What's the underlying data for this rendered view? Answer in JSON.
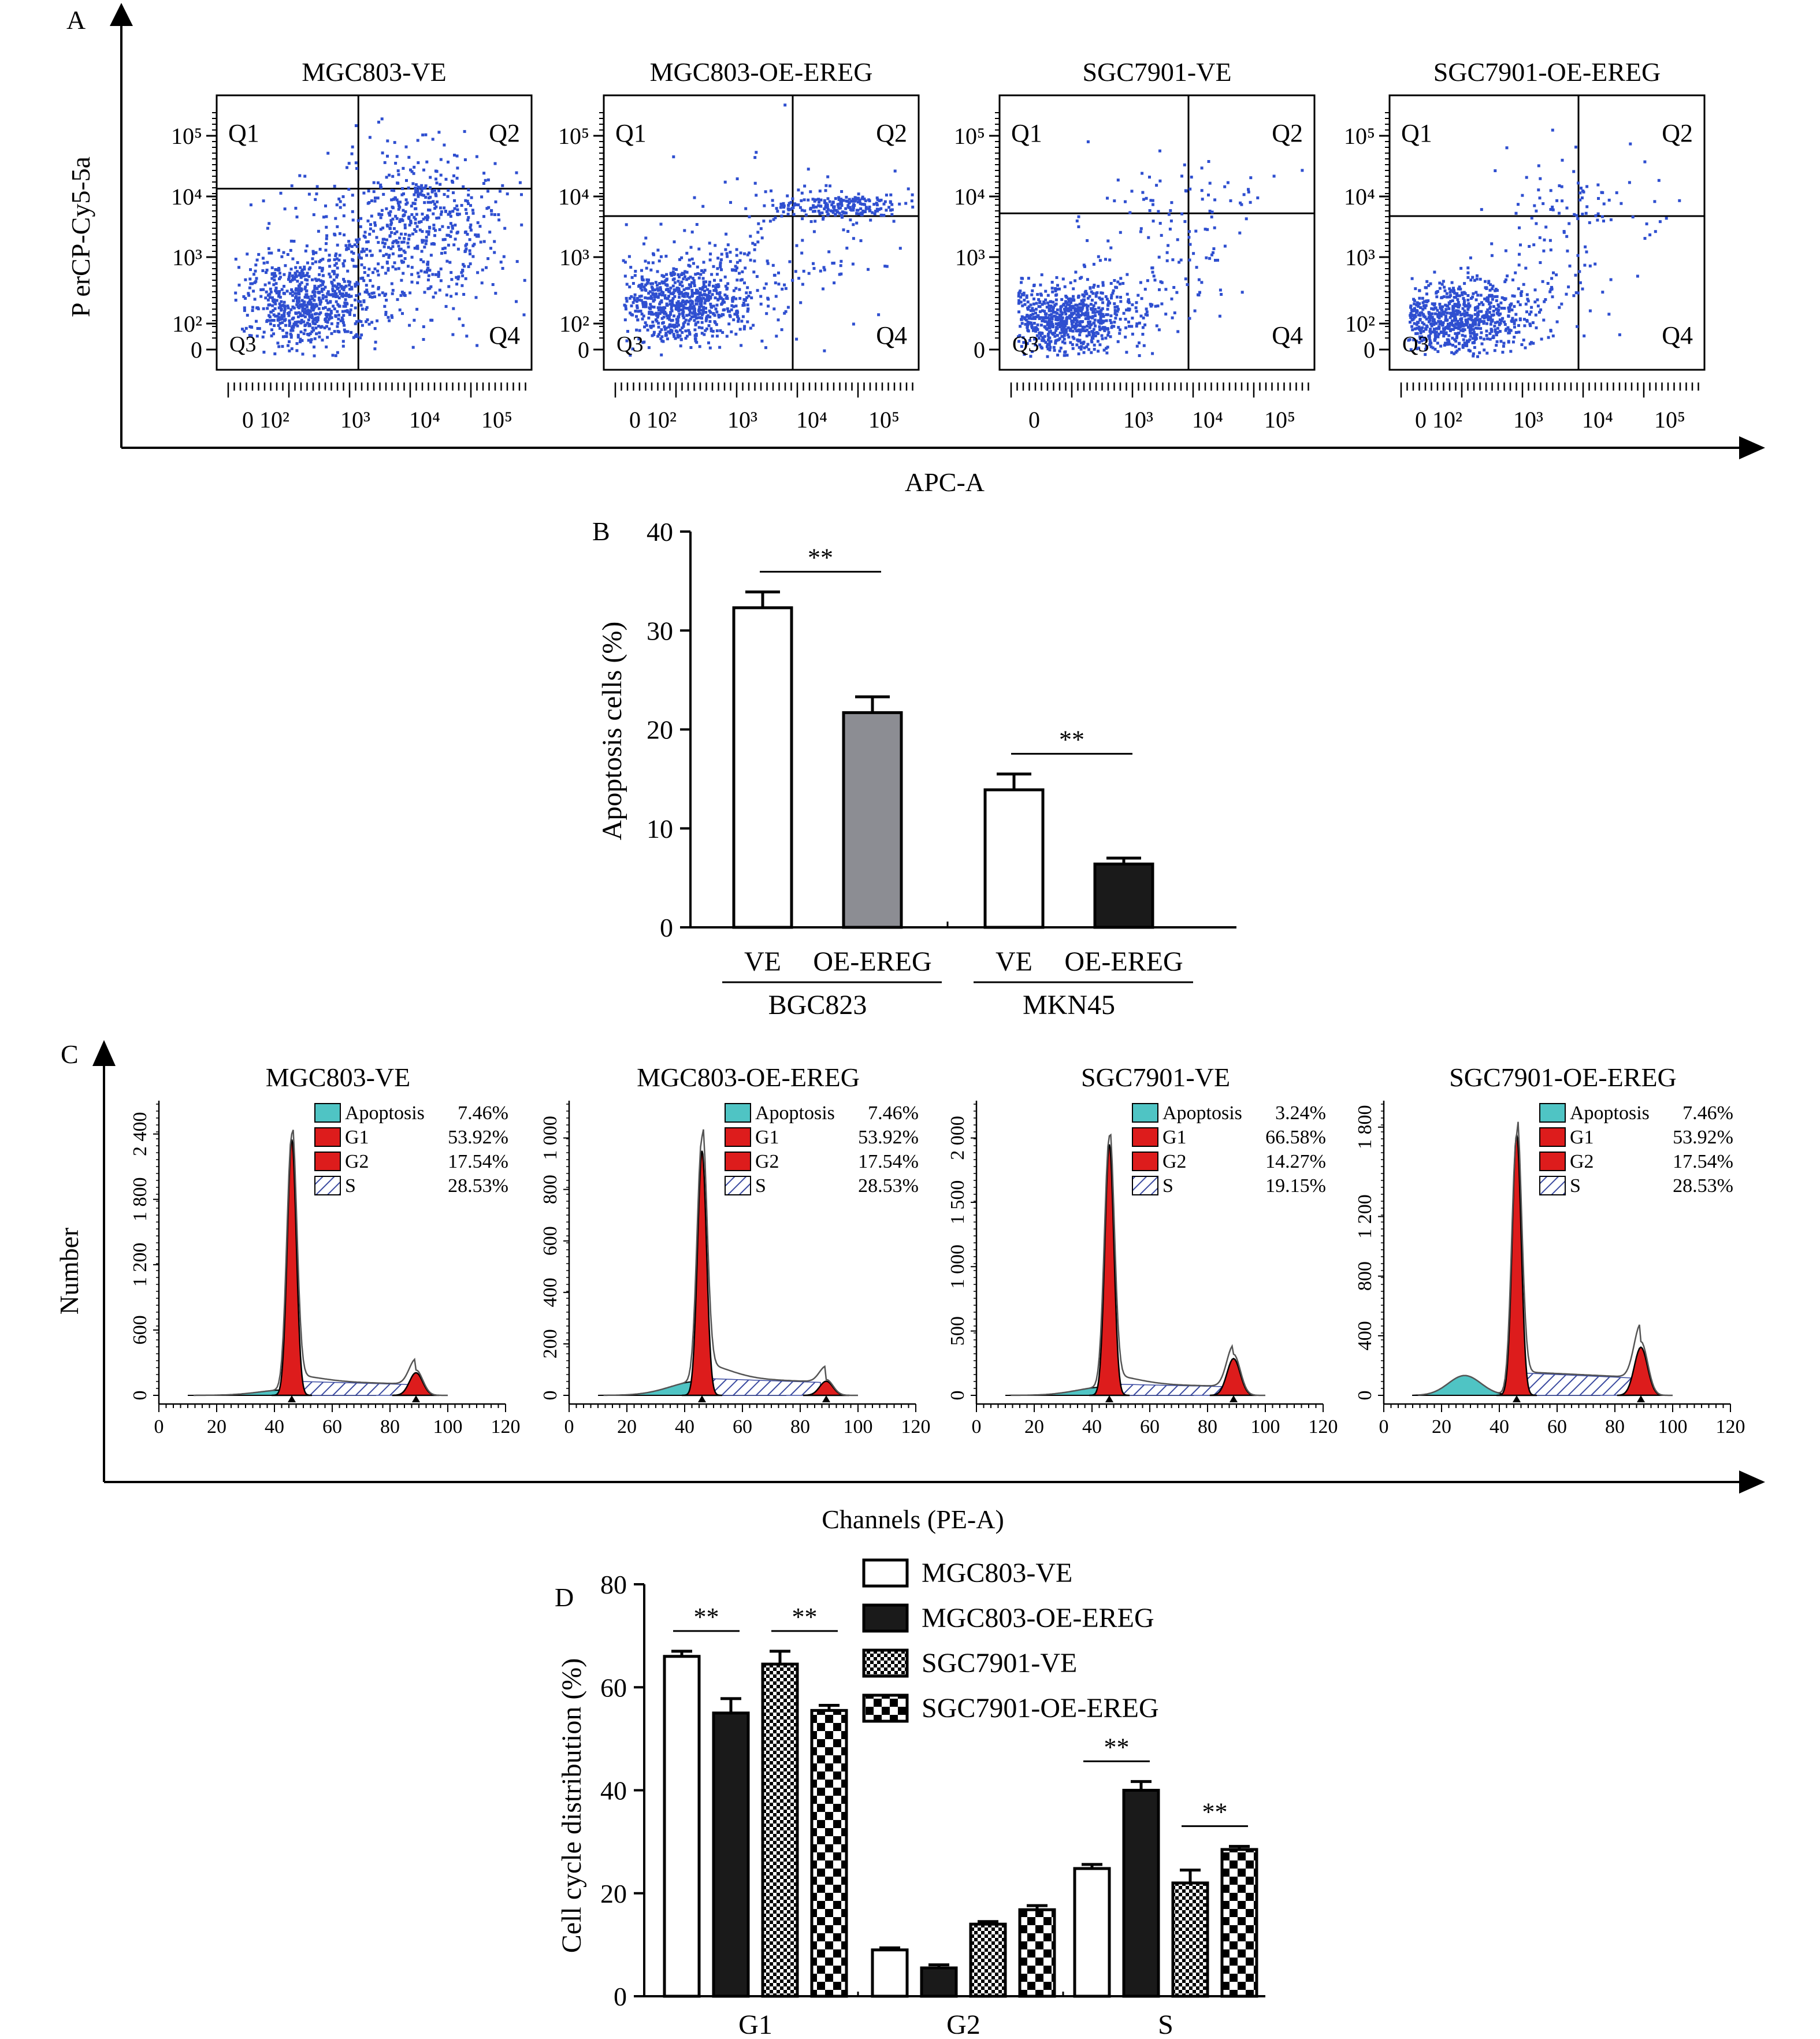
{
  "panel_labels": {
    "a": "A",
    "b": "B",
    "c": "C",
    "d": "D"
  },
  "colors": {
    "dot": "#2f4fd0",
    "g1_peak": "#dd1c1c",
    "apoptosis": "#4fc4c4",
    "s_hatch": "#3a4aa0",
    "bar_gray": "#8c8d93",
    "bar_dark": "#1a1a1a"
  },
  "chart_data": [
    {
      "id": "A",
      "type": "scatter",
      "xlabel": "APC-A",
      "ylabel": "P erCP-Cy5-5a",
      "x_tick_labels": [
        "0",
        "10²",
        "10³",
        "10⁴",
        "10⁵"
      ],
      "y_tick_labels": [
        "0",
        "10²",
        "10³",
        "10⁴",
        "10⁵"
      ],
      "quadrant_labels": [
        "Q1",
        "Q2",
        "Q3",
        "Q4"
      ],
      "plots": [
        {
          "title": "MGC803-VE",
          "x_tick_labels": [
            "0 10²",
            "10³",
            "10⁴",
            "10⁵"
          ],
          "gate_x": 0.45,
          "gate_y": 0.66,
          "pattern": "broad"
        },
        {
          "title": "MGC803-OE-EREG",
          "x_tick_labels": [
            "0 10²",
            "10³",
            "10⁴",
            "10⁵"
          ],
          "gate_x": 0.6,
          "gate_y": 0.56,
          "pattern": "cluster-q2"
        },
        {
          "title": "SGC7901-VE",
          "x_tick_labels": [
            "0",
            "10³",
            "10⁴",
            "10⁵"
          ],
          "gate_x": 0.6,
          "gate_y": 0.57,
          "pattern": "sparse-q2"
        },
        {
          "title": "SGC7901-OE-EREG",
          "x_tick_labels": [
            "0 10²",
            "10³",
            "10⁴",
            "10⁵"
          ],
          "gate_x": 0.6,
          "gate_y": 0.56,
          "pattern": "sparse-q2"
        }
      ]
    },
    {
      "id": "B",
      "type": "bar",
      "ylabel": "Apoptosis cells (%)",
      "ylim": [
        0,
        40
      ],
      "yticks": [
        0,
        10,
        20,
        30,
        40
      ],
      "groups": [
        {
          "name": "BGC823",
          "bars": [
            {
              "label": "VE",
              "value": 32.3,
              "error": 1.6,
              "fill": "white"
            },
            {
              "label": "OE-EREG",
              "value": 21.7,
              "error": 1.6,
              "fill": "gray"
            }
          ],
          "significance": "**"
        },
        {
          "name": "MKN45",
          "bars": [
            {
              "label": "VE",
              "value": 13.9,
              "error": 1.6,
              "fill": "white"
            },
            {
              "label": "OE-EREG",
              "value": 6.4,
              "error": 0.6,
              "fill": "dark"
            }
          ],
          "significance": "**"
        }
      ]
    },
    {
      "id": "C",
      "type": "area",
      "xlabel": "Channels (PE-A)",
      "ylabel": "Number",
      "xticks": [
        0,
        20,
        40,
        60,
        80,
        100,
        120
      ],
      "legend_labels": [
        "Apoptosis",
        "G1",
        "G2",
        "S"
      ],
      "plots": [
        {
          "title": "MGC803-VE",
          "yticks": [
            "0",
            "600",
            "1 200",
            "1 800",
            "2 400"
          ],
          "ymax": 2600,
          "peak": 2350,
          "values": [
            "7.46%",
            "53.92%",
            "17.54%",
            "28.53%"
          ],
          "apop_peak": 0.02,
          "g2_peak": 0.08,
          "s_level": 0.05
        },
        {
          "title": "MGC803-OE-EREG",
          "yticks": [
            "0",
            "200",
            "400",
            "600",
            "800",
            "1 000"
          ],
          "ymax": 1100,
          "peak": 950,
          "values": [
            "7.46%",
            "53.92%",
            "17.54%",
            "28.53%"
          ],
          "apop_peak": 0.05,
          "g2_peak": 0.05,
          "s_level": 0.06
        },
        {
          "title": "SGC7901-VE",
          "yticks": [
            "0",
            "500",
            "1 000",
            "1 500",
            "2 000"
          ],
          "ymax": 2200,
          "peak": 1950,
          "values": [
            "3.24%",
            "66.58%",
            "14.27%",
            "19.15%"
          ],
          "apop_peak": 0.03,
          "g2_peak": 0.13,
          "s_level": 0.04
        },
        {
          "title": "SGC7901-OE-EREG",
          "yticks": [
            "0",
            "400",
            "800",
            "1 200",
            "1 800"
          ],
          "ymax": 1900,
          "peak": 1750,
          "values": [
            "7.46%",
            "53.92%",
            "17.54%",
            "28.53%"
          ],
          "apop_peak": 0.07,
          "g2_peak": 0.17,
          "s_level": 0.08
        }
      ]
    },
    {
      "id": "D",
      "type": "bar",
      "ylabel": "Cell cycle distribution (%)",
      "ylim": [
        0,
        80
      ],
      "yticks": [
        0,
        20,
        40,
        60,
        80
      ],
      "categories": [
        "G1",
        "G2",
        "S"
      ],
      "series": [
        {
          "name": "MGC803-VE",
          "pattern": "white",
          "values": [
            66.0,
            9.0,
            24.8
          ],
          "errors": [
            1.0,
            0.4,
            0.8
          ]
        },
        {
          "name": "MGC803-OE-EREG",
          "pattern": "black",
          "values": [
            55.0,
            5.5,
            40.0
          ],
          "errors": [
            2.8,
            0.6,
            1.7
          ]
        },
        {
          "name": "SGC7901-VE",
          "pattern": "fine-check",
          "values": [
            64.5,
            14.0,
            22.0
          ],
          "errors": [
            2.5,
            0.5,
            2.5
          ]
        },
        {
          "name": "SGC7901-OE-EREG",
          "pattern": "coarse-check",
          "values": [
            55.5,
            16.8,
            28.5
          ],
          "errors": [
            1.0,
            0.8,
            0.6
          ]
        }
      ],
      "significance": [
        {
          "category": "G1",
          "between": [
            0,
            1
          ],
          "label": "**"
        },
        {
          "category": "G1",
          "between": [
            2,
            3
          ],
          "label": "**"
        },
        {
          "category": "S",
          "between": [
            0,
            1
          ],
          "label": "**"
        },
        {
          "category": "S",
          "between": [
            2,
            3
          ],
          "label": "**"
        }
      ]
    }
  ]
}
